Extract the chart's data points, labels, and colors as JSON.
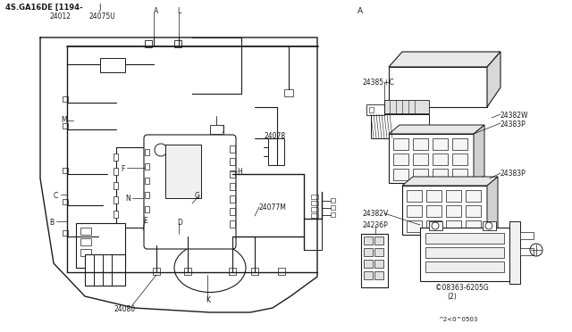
{
  "bg_color": "#f0f0ec",
  "line_color": "#1a1a1a",
  "white": "#ffffff",
  "gray_light": "#cccccc",
  "title_text": "4S.GA16DE [1194-",
  "title_J": "J",
  "label_24012": "24012",
  "label_24075U": "24075U",
  "label_A1": "A",
  "label_L": "L",
  "label_J": "J",
  "label_24078": "24078",
  "label_M": "M",
  "label_F": "F",
  "label_H": "H",
  "label_N": "N",
  "label_G": "G",
  "label_C": "C",
  "label_B": "B",
  "label_E": "E",
  "label_D": "D",
  "label_24077M": "24077M",
  "label_24080": "24080",
  "label_K": "K",
  "label_A2": "A",
  "label_24385C": "24385+C",
  "label_24382W": "24382W",
  "label_24383P_1": "24383P",
  "label_24383P_2": "24383P",
  "label_24382V": "24382V",
  "label_24236P": "24236P",
  "label_screw": "©08363-6205G",
  "label_screw2": "(2)",
  "label_ref": "^2<0^0503"
}
